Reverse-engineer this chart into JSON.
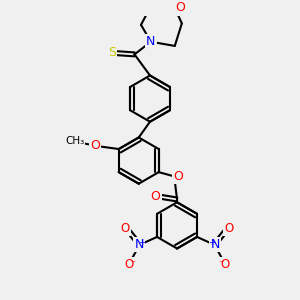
{
  "background_color": "#f0f0f0",
  "bond_color": "#000000",
  "atom_colors": {
    "O": "#ff0000",
    "N": "#0000ff",
    "S": "#c8c800",
    "C": "#000000"
  },
  "figsize": [
    3.0,
    3.0
  ],
  "dpi": 100
}
